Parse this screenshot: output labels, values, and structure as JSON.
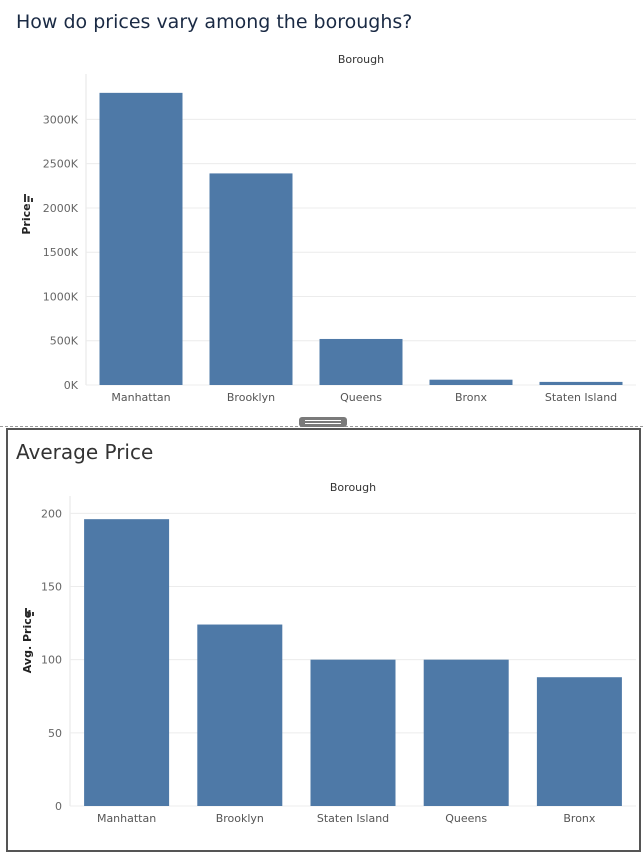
{
  "sheet1": {
    "title": "How do prices vary among the boroughs?",
    "column_header": "Borough"
  },
  "sheet2": {
    "title": "Average Price",
    "column_header": "Borough"
  },
  "colors": {
    "bar": "#4e79a7",
    "grid": "#ececec"
  },
  "chart_data": [
    {
      "type": "bar",
      "title": "How do prices vary among the boroughs?",
      "xlabel": "Borough",
      "ylabel": "Price",
      "categories": [
        "Manhattan",
        "Brooklyn",
        "Queens",
        "Bronx",
        "Staten Island"
      ],
      "values": [
        3300000,
        2390000,
        520000,
        60000,
        35000
      ],
      "yticks": [
        0,
        500000,
        1000000,
        1500000,
        2000000,
        2500000,
        3000000
      ],
      "yticklabels": [
        "0K",
        "500K",
        "1000K",
        "1500K",
        "2000K",
        "2500K",
        "3000K"
      ],
      "ylim": [
        0,
        3400000
      ],
      "grid": true
    },
    {
      "type": "bar",
      "title": "Average Price",
      "xlabel": "Borough",
      "ylabel": "Avg. Price",
      "categories": [
        "Manhattan",
        "Brooklyn",
        "Staten Island",
        "Queens",
        "Bronx"
      ],
      "values": [
        196,
        124,
        100,
        100,
        88
      ],
      "yticks": [
        0,
        50,
        100,
        150,
        200
      ],
      "yticklabels": [
        "0",
        "50",
        "100",
        "150",
        "200"
      ],
      "ylim": [
        0,
        205
      ],
      "grid": true
    }
  ]
}
